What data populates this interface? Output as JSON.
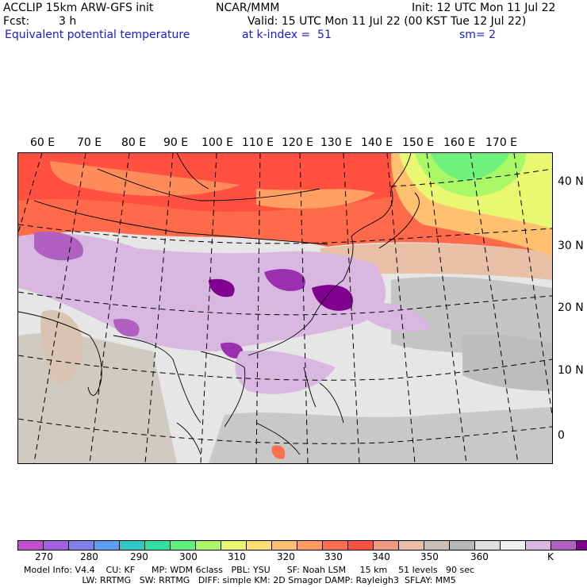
{
  "header": {
    "model": "ACCLIP 15km ARW-GFS init",
    "center": "NCAR/MMM",
    "init": "Init: 12 UTC Mon 11 Jul 22",
    "fcst_label": "Fcst:",
    "fcst_value": "3 h",
    "valid": "Valid: 15 UTC Mon 11 Jul 22 (00 KST Tue 12 Jul 22)",
    "field": "Equivalent potential temperature",
    "level": "at k-index =  51",
    "smooth": "sm= 2"
  },
  "map": {
    "lon_labels": [
      "60 E",
      "70 E",
      "80 E",
      "90 E",
      "100 E",
      "110 E",
      "120 E",
      "130 E",
      "140 E",
      "150 E",
      "160 E",
      "170 E"
    ],
    "lat_labels": [
      "40 N",
      "30 N",
      "20 N",
      "10 N",
      "0"
    ]
  },
  "colorbar": {
    "colors": [
      "#c050d0",
      "#a060e0",
      "#8080e8",
      "#5a9ff0",
      "#30c8c0",
      "#30e0a0",
      "#60f080",
      "#a8f868",
      "#e8f870",
      "#ffe070",
      "#ffc070",
      "#ff9a60",
      "#ff7050",
      "#ff5040",
      "#f09a80",
      "#e8c0a8",
      "#c8c0b8",
      "#b8b8b8",
      "#e0e0e0",
      "#f0f0f0",
      "#d8b8e0",
      "#b060c0",
      "#800090"
    ],
    "labels": [
      "270",
      "280",
      "290",
      "300",
      "310",
      "320",
      "330",
      "340",
      "350",
      "360",
      "K"
    ]
  },
  "footer": {
    "line1": "Model Info: V4.4    CU: KF      MP: WDM 6class   PBL: YSU      SF: Noah LSM     15 km    51 levels   90 sec",
    "line2": "                     LW: RRTMG   SW: RRTMG   DIFF: simple KM: 2D Smagor DAMP: Rayleigh3  SFLAY: MM5"
  }
}
